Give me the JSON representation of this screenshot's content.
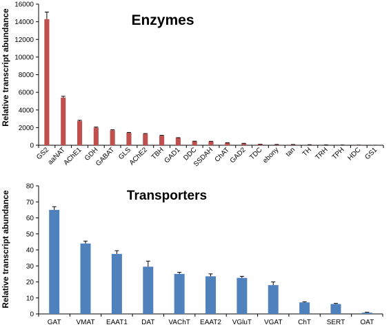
{
  "chart_data": [
    {
      "type": "bar",
      "title": "Enzymes",
      "xlabel": "",
      "ylabel": "Relative transcript abundance",
      "ylim": [
        0,
        16000
      ],
      "yticks": [
        "0",
        "2000",
        "4000",
        "6000",
        "8000",
        "10000",
        "12000",
        "14000",
        "16000"
      ],
      "grid": false,
      "bar_color": "#c0504d",
      "categories": [
        "GS2",
        "aaNAT",
        "AChE1",
        "GDH",
        "GABAT",
        "GLS",
        "AChE2",
        "TBH",
        "GAD1",
        "DDC",
        "SSDAH",
        "ChAT",
        "GAD2",
        "TDC",
        "ebony",
        "tan",
        "TH",
        "TRH",
        "TPH",
        "HDC",
        "GS1"
      ],
      "values": [
        14300,
        5400,
        2750,
        2000,
        1700,
        1400,
        1280,
        1080,
        820,
        430,
        420,
        270,
        200,
        100,
        80,
        75,
        50,
        40,
        25,
        15,
        5
      ],
      "errors": [
        800,
        150,
        80,
        70,
        60,
        50,
        50,
        50,
        40,
        30,
        25,
        20,
        15,
        15,
        10,
        10,
        10,
        5,
        5,
        5,
        2
      ]
    },
    {
      "type": "bar",
      "title": "Transporters",
      "xlabel": "",
      "ylabel": "Relative transcript abundance",
      "ylim": [
        0,
        80
      ],
      "yticks": [
        "0",
        "10",
        "20",
        "30",
        "40",
        "50",
        "60",
        "70",
        "80"
      ],
      "grid": false,
      "bar_color": "#4f81bd",
      "categories": [
        "GAT",
        "VMAT",
        "EAAT1",
        "DAT",
        "VAChT",
        "EAAT2",
        "VGluT",
        "VGAT",
        "ChT",
        "SERT",
        "OAT"
      ],
      "values": [
        65,
        44,
        37.5,
        29.5,
        25,
        23.5,
        22.5,
        18,
        7.2,
        6.2,
        0.8
      ],
      "errors": [
        2,
        1.5,
        2,
        3.5,
        1,
        1.5,
        1,
        2,
        0.4,
        0.4,
        0.3
      ]
    }
  ]
}
